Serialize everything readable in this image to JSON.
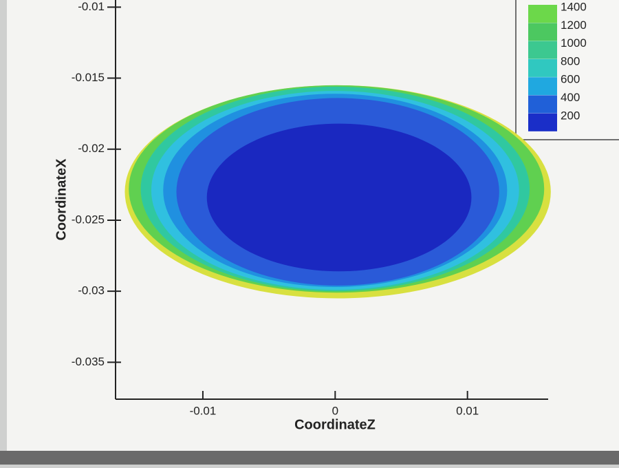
{
  "chart_data": {
    "type": "contour",
    "x_label": "CoordinateZ",
    "y_label": "CoordinateX",
    "xlim": [
      -0.0166,
      0.0161
    ],
    "xticks": [
      -0.01,
      0,
      0.01
    ],
    "ylim": [
      -0.0375,
      -0.0095
    ],
    "yticks": [
      -0.01,
      -0.015,
      -0.02,
      -0.025,
      -0.03,
      -0.035
    ],
    "regions": [
      {
        "color": "#d8e040",
        "cx": 0.0002,
        "cy": -0.023,
        "rx": 0.0161,
        "ry": 0.0075
      },
      {
        "color": "#60d050",
        "cx": 0.0001,
        "cy": -0.0228,
        "rx": 0.0157,
        "ry": 0.0073
      },
      {
        "color": "#30c8a0",
        "cx": 0,
        "cy": -0.0228,
        "rx": 0.0147,
        "ry": 0.0072
      },
      {
        "color": "#30c0e0",
        "cx": 0,
        "cy": -0.0229,
        "rx": 0.0139,
        "ry": 0.007
      },
      {
        "color": "#2090e0",
        "cx": 0,
        "cy": -0.0229,
        "rx": 0.013,
        "ry": 0.0068
      },
      {
        "color": "#2a5ad8",
        "cx": 0.0002,
        "cy": -0.023,
        "rx": 0.0122,
        "ry": 0.0066
      },
      {
        "color": "#1a28c0",
        "cx": 0.0003,
        "cy": -0.0234,
        "rx": 0.01,
        "ry": 0.0052
      }
    ],
    "legend_levels": [
      1400,
      1200,
      1000,
      800,
      600,
      400,
      200
    ],
    "legend_colors": [
      "#6cd84a",
      "#4cc860",
      "#3cc890",
      "#30c8c0",
      "#20a8e0",
      "#2060d8",
      "#1a2ec8"
    ]
  }
}
